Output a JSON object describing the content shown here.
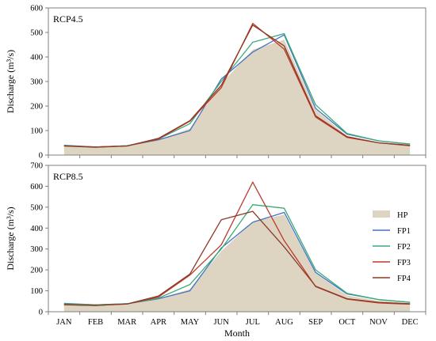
{
  "chart_data": [
    {
      "type": "area",
      "title": "RCP4.5",
      "xlabel": "",
      "ylabel": "Discharge (m³/s)",
      "ylim": [
        0,
        600
      ],
      "yticks": [
        0,
        100,
        200,
        300,
        400,
        500,
        600
      ],
      "categories": [
        "JAN",
        "FEB",
        "MAR",
        "APR",
        "MAY",
        "JUN",
        "JUL",
        "AUG",
        "SEP",
        "OCT",
        "NOV",
        "DEC"
      ],
      "grid": false,
      "series": [
        {
          "name": "HP",
          "style": "area",
          "color": "#ddd5c2",
          "values": [
            38,
            32,
            38,
            62,
            108,
            290,
            430,
            470,
            185,
            78,
            52,
            40
          ]
        },
        {
          "name": "FP1",
          "style": "line",
          "color": "#4472c4",
          "values": [
            40,
            33,
            38,
            62,
            100,
            310,
            420,
            490,
            190,
            85,
            58,
            45
          ]
        },
        {
          "name": "FP2",
          "style": "line",
          "color": "#3aab77",
          "values": [
            38,
            33,
            38,
            65,
            128,
            300,
            460,
            495,
            205,
            88,
            58,
            45
          ]
        },
        {
          "name": "FP3",
          "style": "line",
          "color": "#c0392b",
          "values": [
            37,
            33,
            37,
            65,
            138,
            275,
            537,
            432,
            155,
            72,
            50,
            38
          ]
        },
        {
          "name": "FP4",
          "style": "line",
          "color": "#8b3a26",
          "values": [
            37,
            32,
            37,
            68,
            140,
            285,
            530,
            445,
            160,
            75,
            50,
            40
          ]
        }
      ]
    },
    {
      "type": "area",
      "title": "RCP8.5",
      "xlabel": "Month",
      "ylabel": "Discharge (m³/s)",
      "ylim": [
        0,
        700
      ],
      "yticks": [
        0,
        100,
        200,
        300,
        400,
        500,
        600,
        700
      ],
      "categories": [
        "JAN",
        "FEB",
        "MAR",
        "APR",
        "MAY",
        "JUN",
        "JUL",
        "AUG",
        "SEP",
        "OCT",
        "NOV",
        "DEC"
      ],
      "grid": false,
      "legend_position": "right",
      "series": [
        {
          "name": "HP",
          "style": "area",
          "color": "#ddd5c2",
          "values": [
            38,
            32,
            38,
            62,
            108,
            290,
            430,
            465,
            185,
            78,
            52,
            40
          ]
        },
        {
          "name": "FP1",
          "style": "line",
          "color": "#4472c4",
          "values": [
            40,
            33,
            38,
            62,
            100,
            305,
            428,
            475,
            188,
            85,
            58,
            45
          ]
        },
        {
          "name": "FP2",
          "style": "line",
          "color": "#3aab77",
          "values": [
            38,
            33,
            38,
            65,
            130,
            300,
            512,
            495,
            200,
            88,
            58,
            45
          ]
        },
        {
          "name": "FP3",
          "style": "line",
          "color": "#c0392b",
          "values": [
            34,
            30,
            37,
            70,
            175,
            320,
            620,
            340,
            120,
            60,
            42,
            36
          ]
        },
        {
          "name": "FP4",
          "style": "line",
          "color": "#8b3a26",
          "values": [
            33,
            30,
            37,
            75,
            180,
            440,
            480,
            310,
            122,
            62,
            45,
            38
          ]
        }
      ]
    }
  ]
}
